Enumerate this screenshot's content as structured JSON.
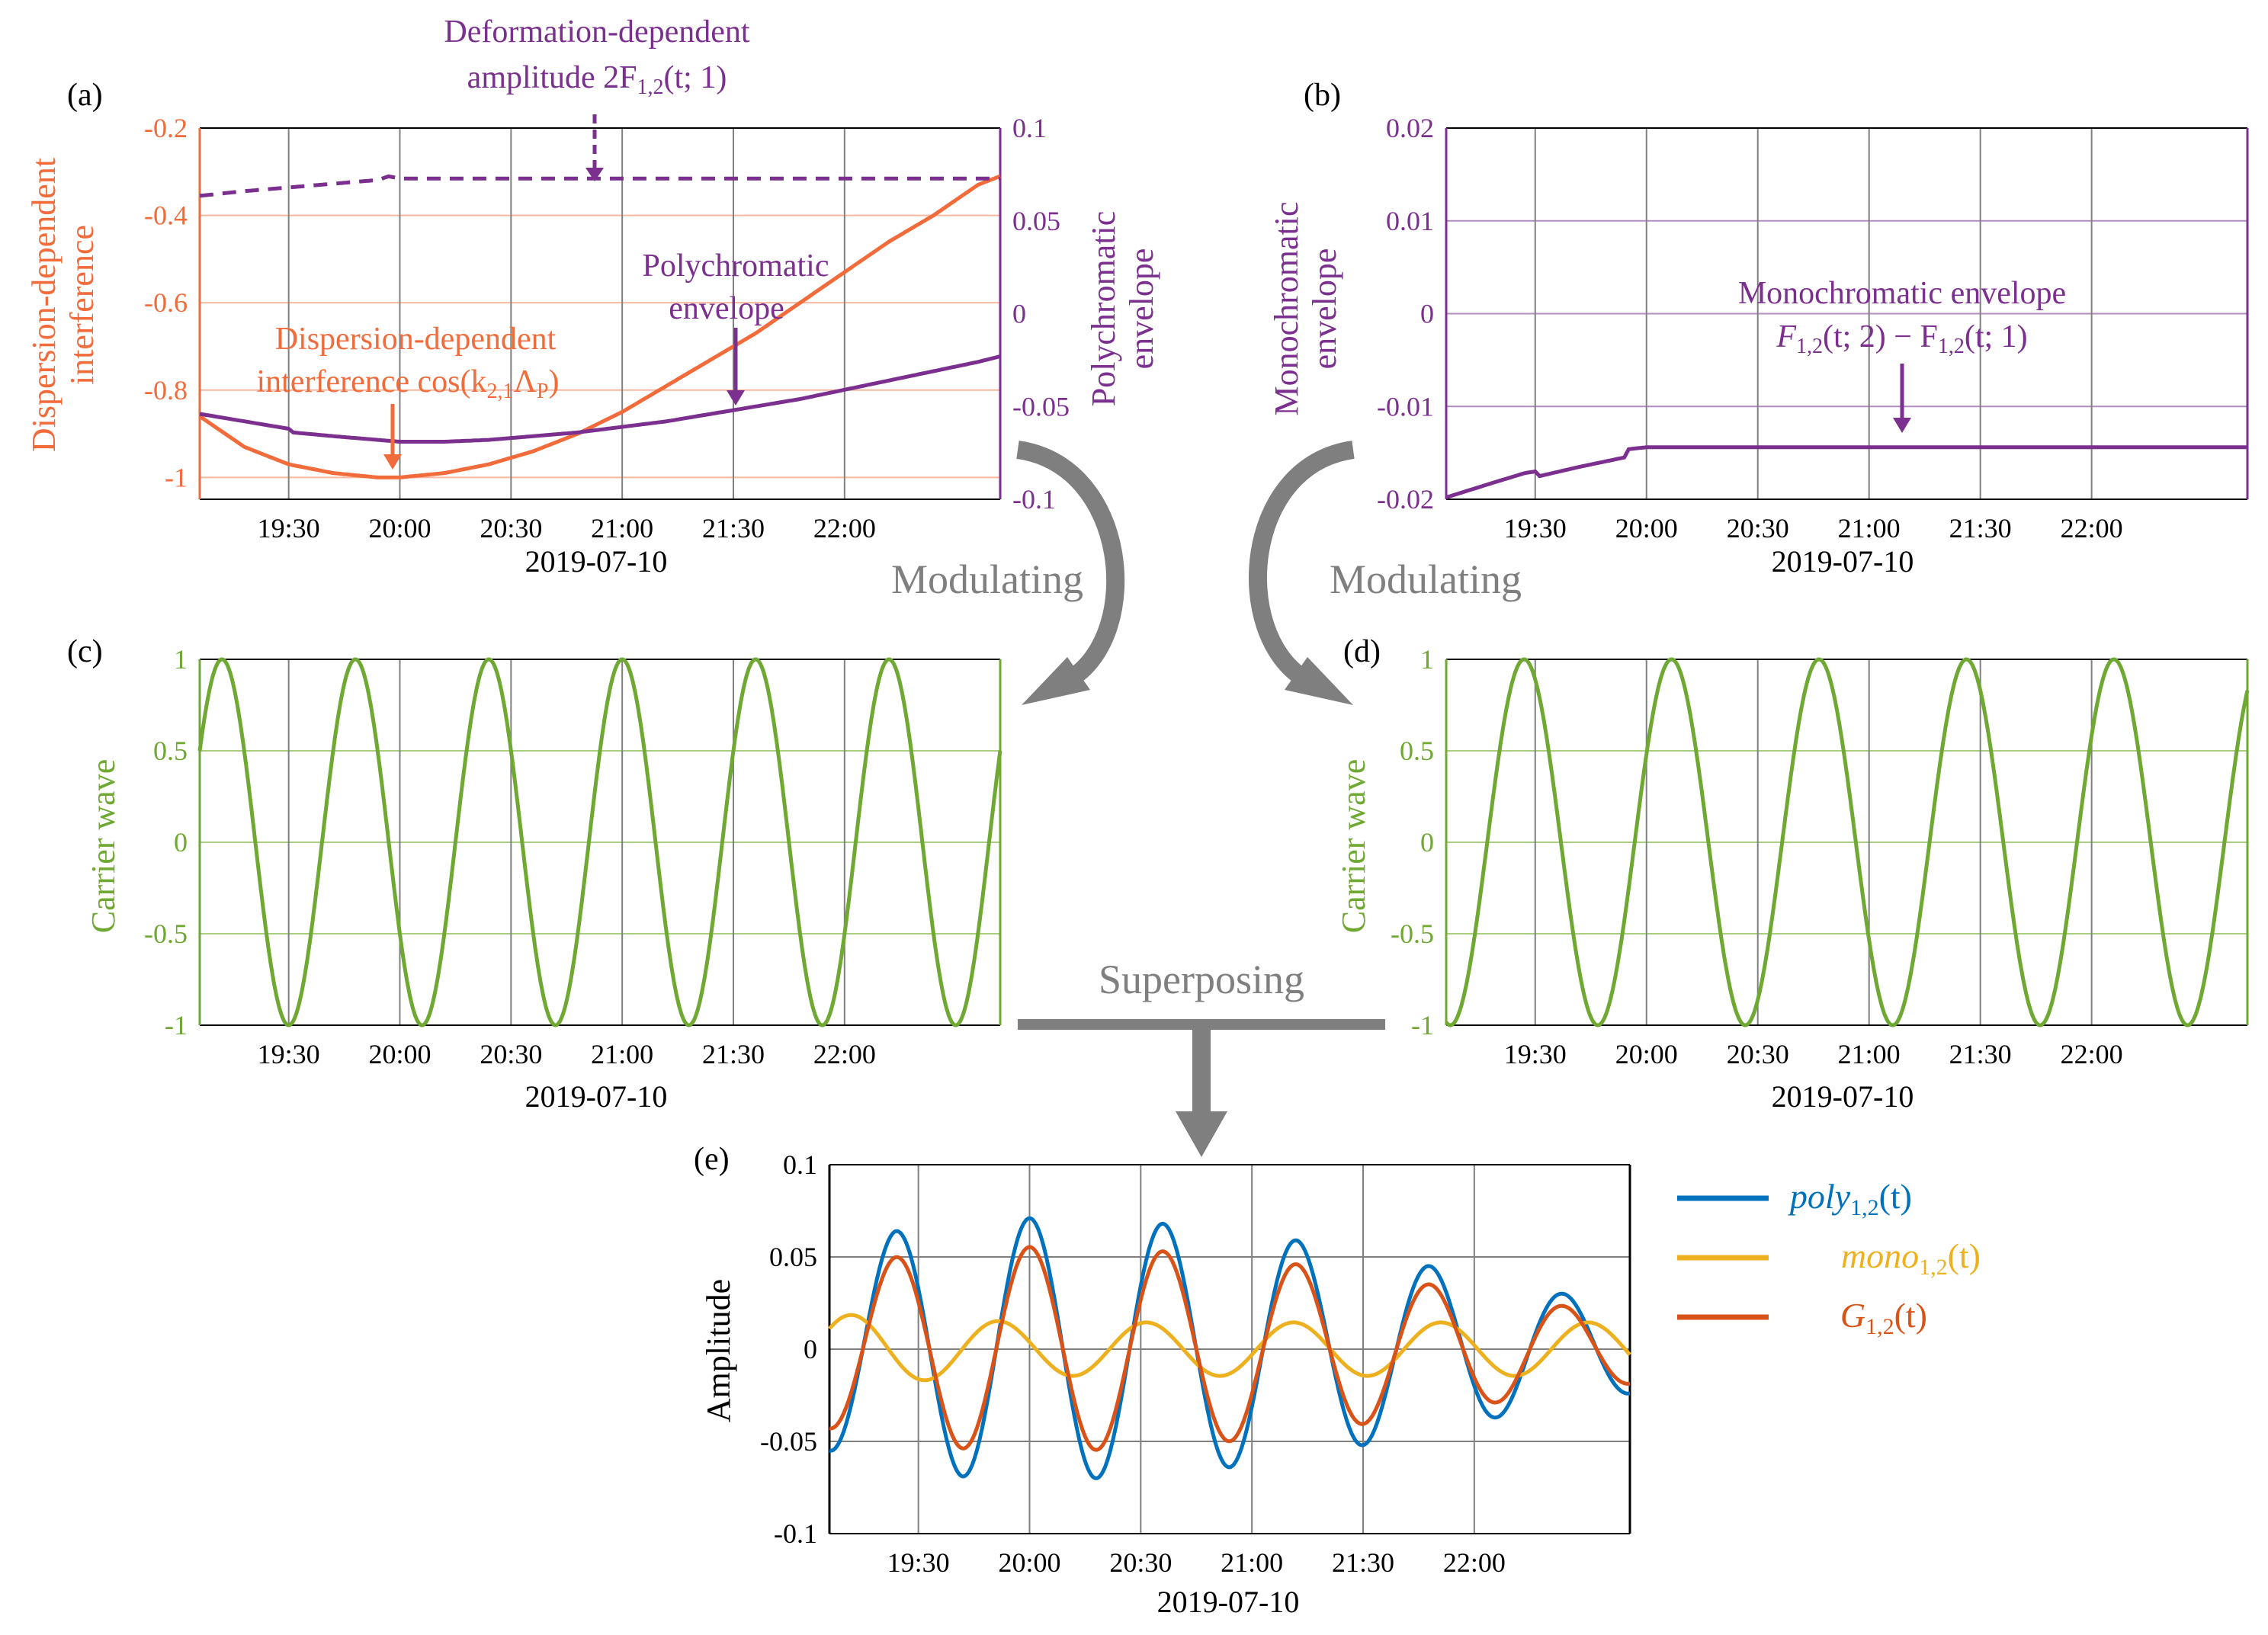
{
  "colors": {
    "orange": "#F26B3A",
    "purple": "#7B2F8E",
    "green": "#6FA832",
    "blue": "#0072BD",
    "yellow": "#EDB120",
    "red": "#D95319",
    "grid": "#808080",
    "arrow": "#7F7F7F",
    "black": "#000000"
  },
  "flow_labels": {
    "modulating_left": "Modulating",
    "modulating_right": "Modulating",
    "superposing": "Superposing"
  },
  "chart_data": [
    {
      "id": "a",
      "type": "line",
      "panel_label": "(a)",
      "xlabel": "2019-07-10",
      "ylabel_left": [
        "Dispersion-dependent",
        "interference"
      ],
      "ylabel_right": [
        "Polychromatic",
        "envelope"
      ],
      "xlim": [
        19.1,
        22.7
      ],
      "ylim_left": [
        -1.05,
        -0.2
      ],
      "ylim_right": [
        -0.1,
        0.1
      ],
      "xticks": [
        19.5,
        20.0,
        20.5,
        21.0,
        21.5,
        22.0
      ],
      "xtick_labels": [
        "19:30",
        "20:00",
        "20:30",
        "21:00",
        "21:30",
        "22:00"
      ],
      "yticks_left": [
        -1,
        -0.8,
        -0.6,
        -0.4,
        -0.2
      ],
      "ytick_labels_left": [
        "-1",
        "-0.8",
        "-0.6",
        "-0.4",
        "-0.2"
      ],
      "yticks_right": [
        -0.1,
        -0.05,
        0,
        0.05,
        0.1
      ],
      "ytick_labels_right": [
        "-0.1",
        "-0.05",
        "0",
        "0.05",
        "0.1"
      ],
      "series": [
        {
          "name": "Dispersion-dependent interference",
          "axis": "left",
          "color": "orange",
          "x": [
            19.1,
            19.3,
            19.5,
            19.7,
            19.9,
            20.0,
            20.2,
            20.4,
            20.6,
            20.8,
            21.0,
            21.2,
            21.4,
            21.6,
            21.8,
            22.0,
            22.2,
            22.4,
            22.6,
            22.7
          ],
          "y": [
            -0.86,
            -0.93,
            -0.97,
            -0.99,
            -1.0,
            -1.0,
            -0.99,
            -0.97,
            -0.94,
            -0.9,
            -0.85,
            -0.79,
            -0.73,
            -0.67,
            -0.6,
            -0.53,
            -0.46,
            -0.4,
            -0.33,
            -0.31
          ]
        },
        {
          "name": "Polychromatic envelope",
          "axis": "right",
          "color": "purple",
          "x": [
            19.1,
            19.3,
            19.5,
            19.52,
            19.7,
            19.9,
            20.0,
            20.2,
            20.4,
            20.6,
            20.8,
            21.0,
            21.2,
            21.4,
            21.6,
            21.8,
            22.0,
            22.2,
            22.4,
            22.6,
            22.7
          ],
          "y": [
            -0.054,
            -0.058,
            -0.062,
            -0.064,
            -0.066,
            -0.068,
            -0.069,
            -0.069,
            -0.068,
            -0.066,
            -0.064,
            -0.061,
            -0.058,
            -0.054,
            -0.05,
            -0.046,
            -0.041,
            -0.036,
            -0.031,
            -0.026,
            -0.023
          ]
        },
        {
          "name": "Deformation-dependent amplitude",
          "axis": "right",
          "color": "purple",
          "dashed": true,
          "x": [
            19.1,
            19.3,
            19.5,
            19.7,
            19.9,
            19.95,
            20.0,
            20.3,
            20.7,
            21.1,
            21.5,
            21.9,
            22.3,
            22.7
          ],
          "y": [
            0.0635,
            0.066,
            0.068,
            0.07,
            0.072,
            0.074,
            0.0728,
            0.0728,
            0.0728,
            0.0728,
            0.0728,
            0.0728,
            0.0728,
            0.0728
          ]
        }
      ],
      "annotations": {
        "deformation_line1": "Deformation-dependent",
        "deformation_line2": "amplitude 2F",
        "deformation_sub": "1,2",
        "deformation_args": "(t; 1)",
        "poly_line1": "Polychromatic",
        "poly_line2": "envelope",
        "disp_line1": "Dispersion-dependent",
        "disp_line2": "interference cos(k",
        "disp_sub": "2,1",
        "disp_lambda": "Λ",
        "disp_lambda_sub": "P",
        "disp_close": ")"
      }
    },
    {
      "id": "b",
      "type": "line",
      "panel_label": "(b)",
      "xlabel": "2019-07-10",
      "ylabel_left": [
        "Monochromatic",
        "envelope"
      ],
      "xlim": [
        19.1,
        22.7
      ],
      "ylim": [
        -0.02,
        0.02
      ],
      "xticks": [
        19.5,
        20.0,
        20.5,
        21.0,
        21.5,
        22.0
      ],
      "xtick_labels": [
        "19:30",
        "20:00",
        "20:30",
        "21:00",
        "21:30",
        "22:00"
      ],
      "yticks": [
        -0.02,
        -0.01,
        0,
        0.01,
        0.02
      ],
      "ytick_labels": [
        "-0.02",
        "-0.01",
        "0",
        "0.01",
        "0.02"
      ],
      "series": [
        {
          "name": "Monochromatic envelope",
          "color": "purple",
          "x": [
            19.1,
            19.3,
            19.45,
            19.5,
            19.52,
            19.7,
            19.9,
            19.92,
            20.0,
            20.4,
            20.8,
            21.2,
            21.6,
            22.0,
            22.4,
            22.7
          ],
          "y": [
            -0.0198,
            -0.0183,
            -0.0172,
            -0.017,
            -0.0175,
            -0.0165,
            -0.0155,
            -0.0146,
            -0.0144,
            -0.0144,
            -0.0144,
            -0.0144,
            -0.0144,
            -0.0144,
            -0.0144,
            -0.0144
          ]
        }
      ],
      "annotations": {
        "mono_line1": "Monochromatic envelope",
        "mono_f1": "F",
        "mono_sub1": "1,2",
        "mono_args1": "(t; 2) − F",
        "mono_sub2": "1,2",
        "mono_args2": "(t; 1)"
      }
    },
    {
      "id": "c",
      "type": "line",
      "panel_label": "(c)",
      "xlabel": "2019-07-10",
      "ylabel_left": [
        "Carrier wave"
      ],
      "xlim": [
        19.1,
        22.7
      ],
      "ylim": [
        -1,
        1
      ],
      "xticks": [
        19.5,
        20.0,
        20.5,
        21.0,
        21.5,
        22.0
      ],
      "xtick_labels": [
        "19:30",
        "20:00",
        "20:30",
        "21:00",
        "21:30",
        "22:00"
      ],
      "yticks": [
        -1,
        -0.5,
        0,
        0.5,
        1
      ],
      "ytick_labels": [
        "-1",
        "-0.5",
        "0",
        "0.5",
        "1"
      ],
      "series": [
        {
          "name": "Carrier wave",
          "color": "green",
          "func": "cos",
          "amplitude": 1,
          "period": 0.6,
          "peak_x": 19.2
        }
      ]
    },
    {
      "id": "d",
      "type": "line",
      "panel_label": "(d)",
      "xlabel": "2019-07-10",
      "ylabel_left": [
        "Carrier wave"
      ],
      "xlim": [
        19.1,
        22.7
      ],
      "ylim": [
        -1,
        1
      ],
      "xticks": [
        19.5,
        20.0,
        20.5,
        21.0,
        21.5,
        22.0
      ],
      "xtick_labels": [
        "19:30",
        "20:00",
        "20:30",
        "21:00",
        "21:30",
        "22:00"
      ],
      "yticks": [
        -1,
        -0.5,
        0,
        0.5,
        1
      ],
      "ytick_labels": [
        "-1",
        "-0.5",
        "0",
        "0.5",
        "1"
      ],
      "series": [
        {
          "name": "Carrier wave",
          "color": "green",
          "func": "cos",
          "amplitude": 1,
          "period": 0.6625,
          "peak_x": 19.45
        }
      ]
    },
    {
      "id": "e",
      "type": "line",
      "panel_label": "(e)",
      "xlabel": "2019-07-10",
      "ylabel_left": [
        "Amplitude"
      ],
      "xlim": [
        19.1,
        22.7
      ],
      "ylim": [
        -0.1,
        0.1
      ],
      "xticks": [
        19.5,
        20.0,
        20.5,
        21.0,
        21.5,
        22.0
      ],
      "xtick_labels": [
        "19:30",
        "20:00",
        "20:30",
        "21:00",
        "21:30",
        "22:00"
      ],
      "yticks": [
        -0.1,
        -0.05,
        0,
        0.05,
        0.1
      ],
      "ytick_labels": [
        "-0.1",
        "-0.05",
        "0",
        "0.05",
        "0.1"
      ],
      "series": [
        {
          "name": "poly",
          "sub": "1,2",
          "args": "(t)",
          "color": "blue",
          "func": "cos",
          "period": 0.6,
          "peak_x": 19.4,
          "env_x": [
            19.1,
            19.4,
            19.7,
            20.0,
            20.3,
            20.6,
            20.9,
            21.2,
            21.5,
            21.8,
            22.1,
            22.4,
            22.7
          ],
          "env_y": [
            0.055,
            0.064,
            0.069,
            0.071,
            0.07,
            0.068,
            0.064,
            0.059,
            0.052,
            0.045,
            0.037,
            0.03,
            0.024
          ]
        },
        {
          "name": "mono",
          "sub": "1,2",
          "args": "(t)",
          "color": "yellow",
          "func": "cos",
          "period": 0.6625,
          "peak_x": 19.2,
          "env_x": [
            19.1,
            19.5,
            20.0,
            22.7
          ],
          "env_y": [
            0.019,
            0.017,
            0.0145,
            0.0145
          ]
        },
        {
          "name": "G",
          "sub": "1,2",
          "args": "(t)",
          "color": "red",
          "func": "sum_of_previous"
        }
      ]
    }
  ]
}
